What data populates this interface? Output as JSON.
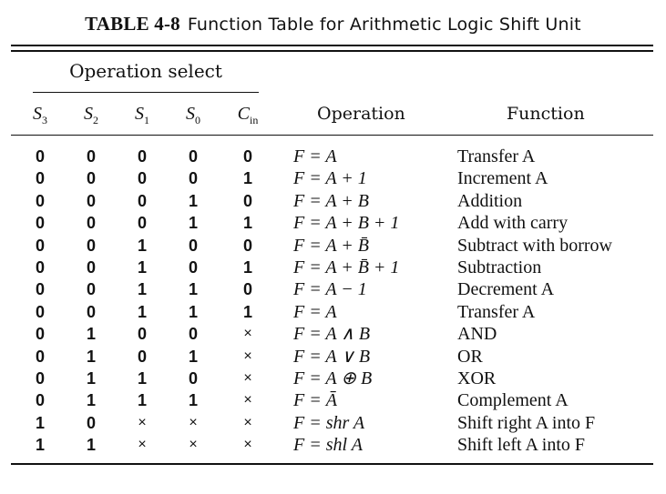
{
  "caption": {
    "label": "TABLE 4-8",
    "title": "Function Table for Arithmetic Logic Shift Unit"
  },
  "header": {
    "operation_select": "Operation select",
    "select_cols": [
      {
        "base": "S",
        "sub": "3"
      },
      {
        "base": "S",
        "sub": "2"
      },
      {
        "base": "S",
        "sub": "1"
      },
      {
        "base": "S",
        "sub": "0"
      },
      {
        "base": "C",
        "sub": "in"
      }
    ],
    "operation": "Operation",
    "function": "Function"
  },
  "rows": [
    {
      "bits": [
        "0",
        "0",
        "0",
        "0",
        "0"
      ],
      "operation": "F = A",
      "function": "Transfer A"
    },
    {
      "bits": [
        "0",
        "0",
        "0",
        "0",
        "1"
      ],
      "operation": "F = A + 1",
      "function": "Increment A"
    },
    {
      "bits": [
        "0",
        "0",
        "0",
        "1",
        "0"
      ],
      "operation": "F = A + B",
      "function": "Addition"
    },
    {
      "bits": [
        "0",
        "0",
        "0",
        "1",
        "1"
      ],
      "operation": "F = A + B + 1",
      "function": "Add with carry"
    },
    {
      "bits": [
        "0",
        "0",
        "1",
        "0",
        "0"
      ],
      "operation": "F = A + B̄",
      "function": "Subtract with borrow"
    },
    {
      "bits": [
        "0",
        "0",
        "1",
        "0",
        "1"
      ],
      "operation": "F = A + B̄ + 1",
      "function": "Subtraction"
    },
    {
      "bits": [
        "0",
        "0",
        "1",
        "1",
        "0"
      ],
      "operation": "F = A − 1",
      "function": "Decrement A"
    },
    {
      "bits": [
        "0",
        "0",
        "1",
        "1",
        "1"
      ],
      "operation": "F = A",
      "function": "Transfer A"
    },
    {
      "bits": [
        "0",
        "1",
        "0",
        "0",
        "×"
      ],
      "operation": "F = A ∧ B",
      "function": "AND"
    },
    {
      "bits": [
        "0",
        "1",
        "0",
        "1",
        "×"
      ],
      "operation": "F = A ∨ B",
      "function": "OR"
    },
    {
      "bits": [
        "0",
        "1",
        "1",
        "0",
        "×"
      ],
      "operation": "F = A ⊕ B",
      "function": "XOR"
    },
    {
      "bits": [
        "0",
        "1",
        "1",
        "1",
        "×"
      ],
      "operation": "F = Ā",
      "function": "Complement A"
    },
    {
      "bits": [
        "1",
        "0",
        "×",
        "×",
        "×"
      ],
      "operation": "F = shr A",
      "function": "Shift right A into F"
    },
    {
      "bits": [
        "1",
        "1",
        "×",
        "×",
        "×"
      ],
      "operation": "F = shl A",
      "function": "Shift left A into F"
    }
  ]
}
